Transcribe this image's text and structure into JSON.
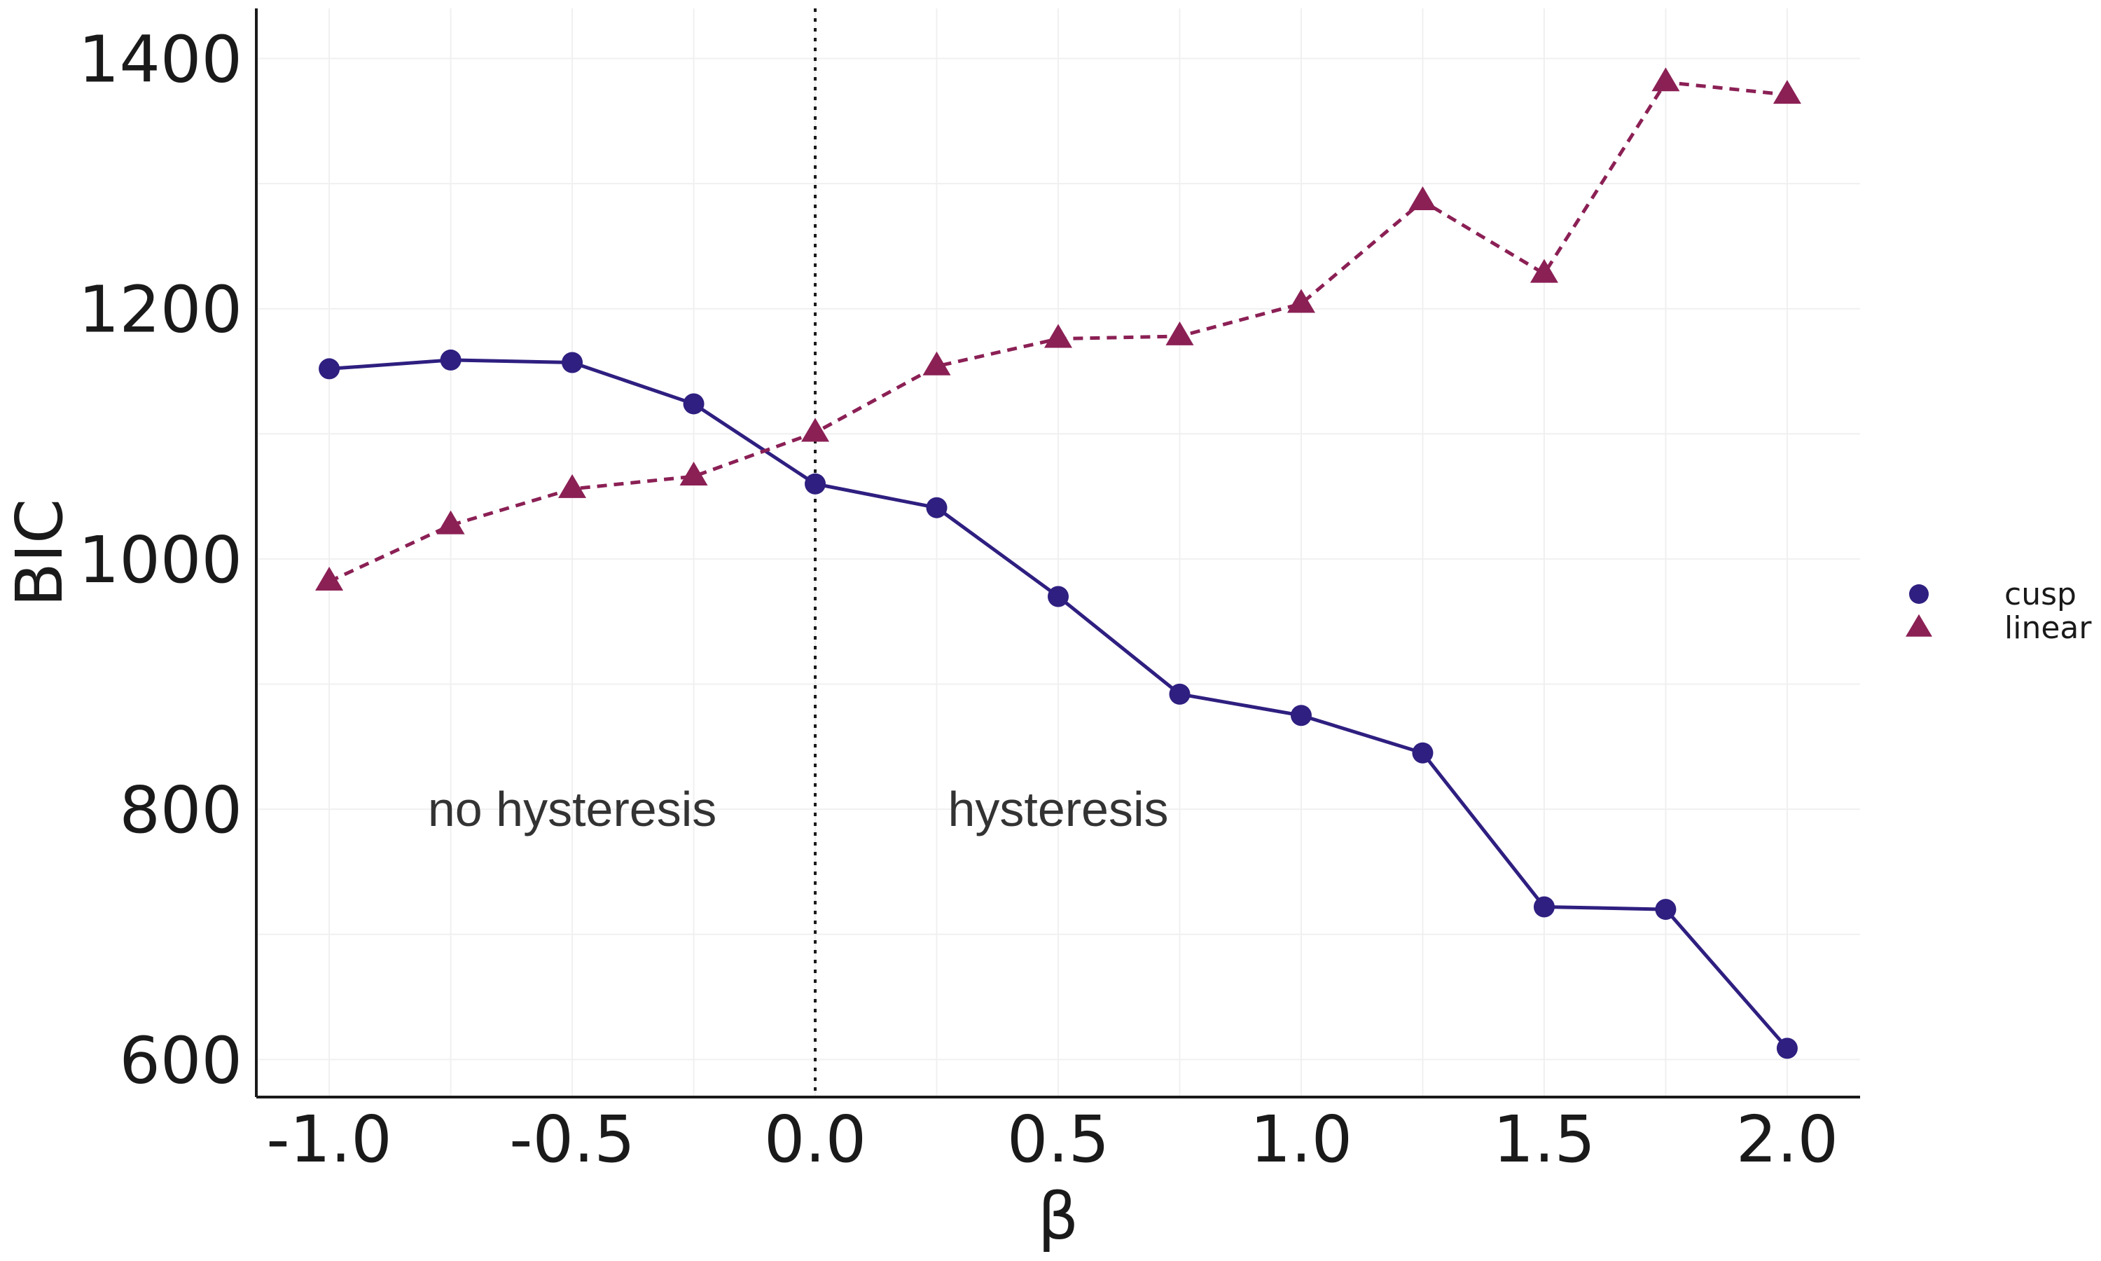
{
  "chart_data": {
    "type": "line",
    "xlabel": "β",
    "ylabel": "BIC",
    "xlim": [
      -1.15,
      2.15
    ],
    "ylim": [
      570,
      1440
    ],
    "x_ticks": [
      -1.0,
      -0.5,
      0.0,
      0.5,
      1.0,
      1.5,
      2.0
    ],
    "x_tick_labels": [
      "-1.0",
      "-0.5",
      "0.0",
      "0.5",
      "1.0",
      "1.5",
      "2.0"
    ],
    "y_ticks": [
      600,
      800,
      1000,
      1200,
      1400
    ],
    "y_tick_labels": [
      "600",
      "800",
      "1000",
      "1200",
      "1400"
    ],
    "grid": true,
    "legend_position": "right",
    "reference_line": {
      "x": 0.0,
      "style": "dotted",
      "color": "#1a1a1a"
    },
    "annotations": [
      {
        "text": "no hysteresis",
        "x": -0.5,
        "y": 800
      },
      {
        "text": "hysteresis",
        "x": 0.5,
        "y": 800
      }
    ],
    "x": [
      -1.0,
      -0.75,
      -0.5,
      -0.25,
      0.0,
      0.25,
      0.5,
      0.75,
      1.0,
      1.25,
      1.5,
      1.75,
      2.0
    ],
    "series": [
      {
        "name": "cusp",
        "marker": "circle",
        "line_style": "solid",
        "color": "#2e1f80",
        "values": [
          1152,
          1159,
          1157,
          1124,
          1060,
          1041,
          970,
          892,
          875,
          845,
          722,
          720,
          609
        ]
      },
      {
        "name": "linear",
        "marker": "triangle",
        "line_style": "dashed",
        "color": "#8b2055",
        "values": [
          982,
          1027,
          1056,
          1066,
          1101,
          1154,
          1176,
          1178,
          1204,
          1286,
          1228,
          1381,
          1371
        ]
      }
    ]
  }
}
